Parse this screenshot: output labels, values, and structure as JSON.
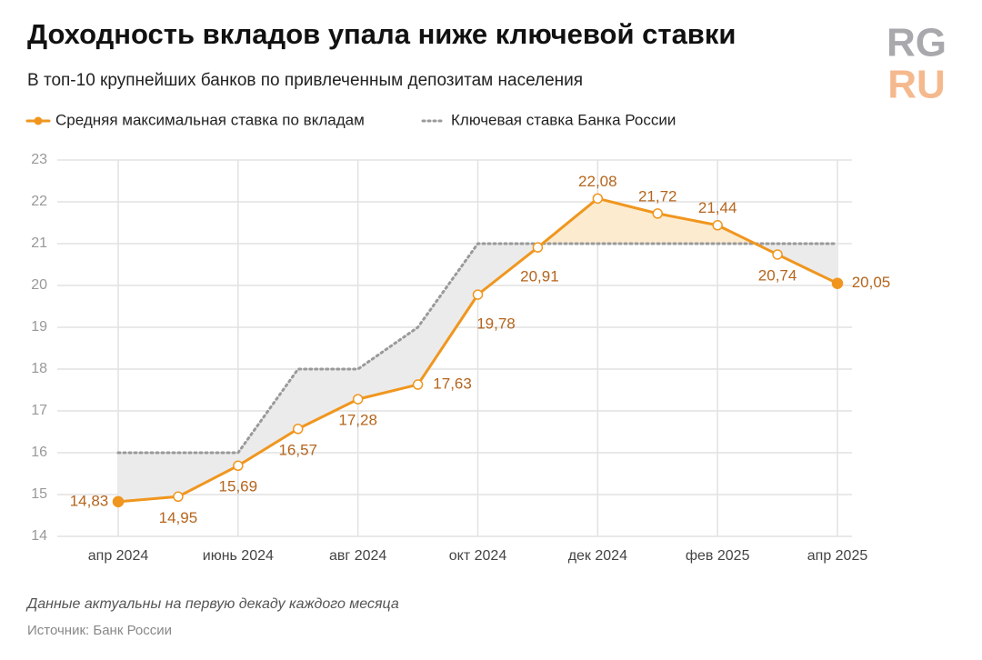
{
  "logo": {
    "top": "RG",
    "bottom": "RU"
  },
  "chart_data": {
    "type": "line",
    "title": "Доходность вкладов упала ниже ключевой ставки",
    "subtitle": "В топ-10 крупнейших банков по привлеченным депозитам населения",
    "categories": [
      "апр 2024",
      null,
      "июнь 2024",
      null,
      "авг 2024",
      null,
      "окт 2024",
      null,
      "дек 2024",
      null,
      "фев 2025",
      null,
      "апр 2025"
    ],
    "series": [
      {
        "name": "Средняя максимальная ставка по вкладам",
        "color": "#f0961e",
        "style": "solid",
        "values": [
          14.83,
          14.95,
          15.69,
          16.57,
          17.28,
          17.63,
          19.78,
          20.91,
          22.08,
          21.72,
          21.44,
          20.74,
          20.05
        ],
        "value_labels": [
          "14,83",
          "14,95",
          "15,69",
          "16,57",
          "17,28",
          "17,63",
          "19,78",
          "20,91",
          "22,08",
          "21,72",
          "21,44",
          "20,74",
          "20,05"
        ]
      },
      {
        "name": "Ключевая ставка Банка России",
        "color": "#9a9a9a",
        "style": "dotted",
        "values": [
          16,
          16,
          16,
          18,
          18,
          19,
          21,
          21,
          21,
          21,
          21,
          21,
          21
        ]
      }
    ],
    "ylim": [
      14,
      23
    ],
    "yticks": [
      14,
      15,
      16,
      17,
      18,
      19,
      20,
      21,
      22,
      23
    ],
    "grid": true,
    "notes": [
      "Данные актуальны на первую декаду каждого месяца",
      "Источник: Банк России"
    ]
  }
}
